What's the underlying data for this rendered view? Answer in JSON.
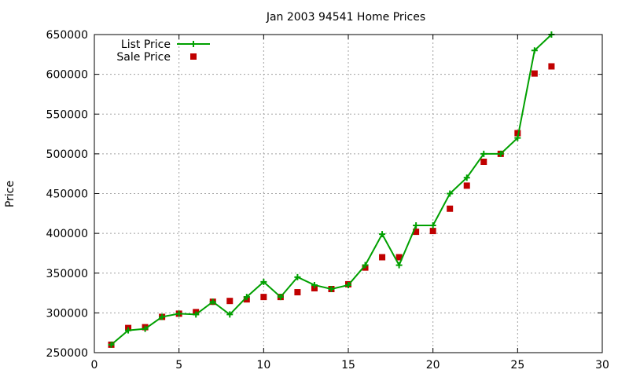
{
  "chart_data": {
    "type": "scatter",
    "title": "Jan 2003 94541 Home Prices",
    "xlabel": "",
    "ylabel": "Price",
    "xlim": [
      0,
      30
    ],
    "ylim": [
      250000,
      650000
    ],
    "xticks": [
      0,
      5,
      10,
      15,
      20,
      25,
      30
    ],
    "yticks": [
      250000,
      300000,
      350000,
      400000,
      450000,
      500000,
      550000,
      600000,
      650000
    ],
    "grid": true,
    "legend_position": "top-left",
    "series": [
      {
        "name": "List Price",
        "style": "line-with-plus-markers",
        "color": "#00a000",
        "x": [
          1,
          2,
          3,
          4,
          5,
          6,
          7,
          8,
          9,
          10,
          11,
          12,
          13,
          14,
          15,
          16,
          17,
          18,
          19,
          20,
          21,
          22,
          23,
          24,
          25,
          26,
          27
        ],
        "y": [
          260000,
          278000,
          280000,
          295000,
          299000,
          298000,
          314000,
          298000,
          320000,
          339000,
          320000,
          345000,
          335000,
          330000,
          335000,
          360000,
          399000,
          360000,
          410000,
          410000,
          450000,
          470000,
          500000,
          500000,
          520000,
          630000,
          650000
        ]
      },
      {
        "name": "Sale Price",
        "style": "square-markers",
        "color": "#c00000",
        "x": [
          1,
          2,
          3,
          4,
          5,
          6,
          7,
          8,
          9,
          10,
          11,
          12,
          13,
          14,
          15,
          16,
          17,
          18,
          19,
          20,
          21,
          22,
          23,
          24,
          25,
          26,
          27
        ],
        "y": [
          260000,
          281000,
          282000,
          295000,
          299000,
          301000,
          314000,
          315000,
          317000,
          320000,
          320000,
          326000,
          331000,
          330000,
          336000,
          357000,
          370000,
          370000,
          402000,
          403000,
          431000,
          460000,
          490000,
          500000,
          526000,
          601000,
          610000
        ]
      }
    ]
  }
}
